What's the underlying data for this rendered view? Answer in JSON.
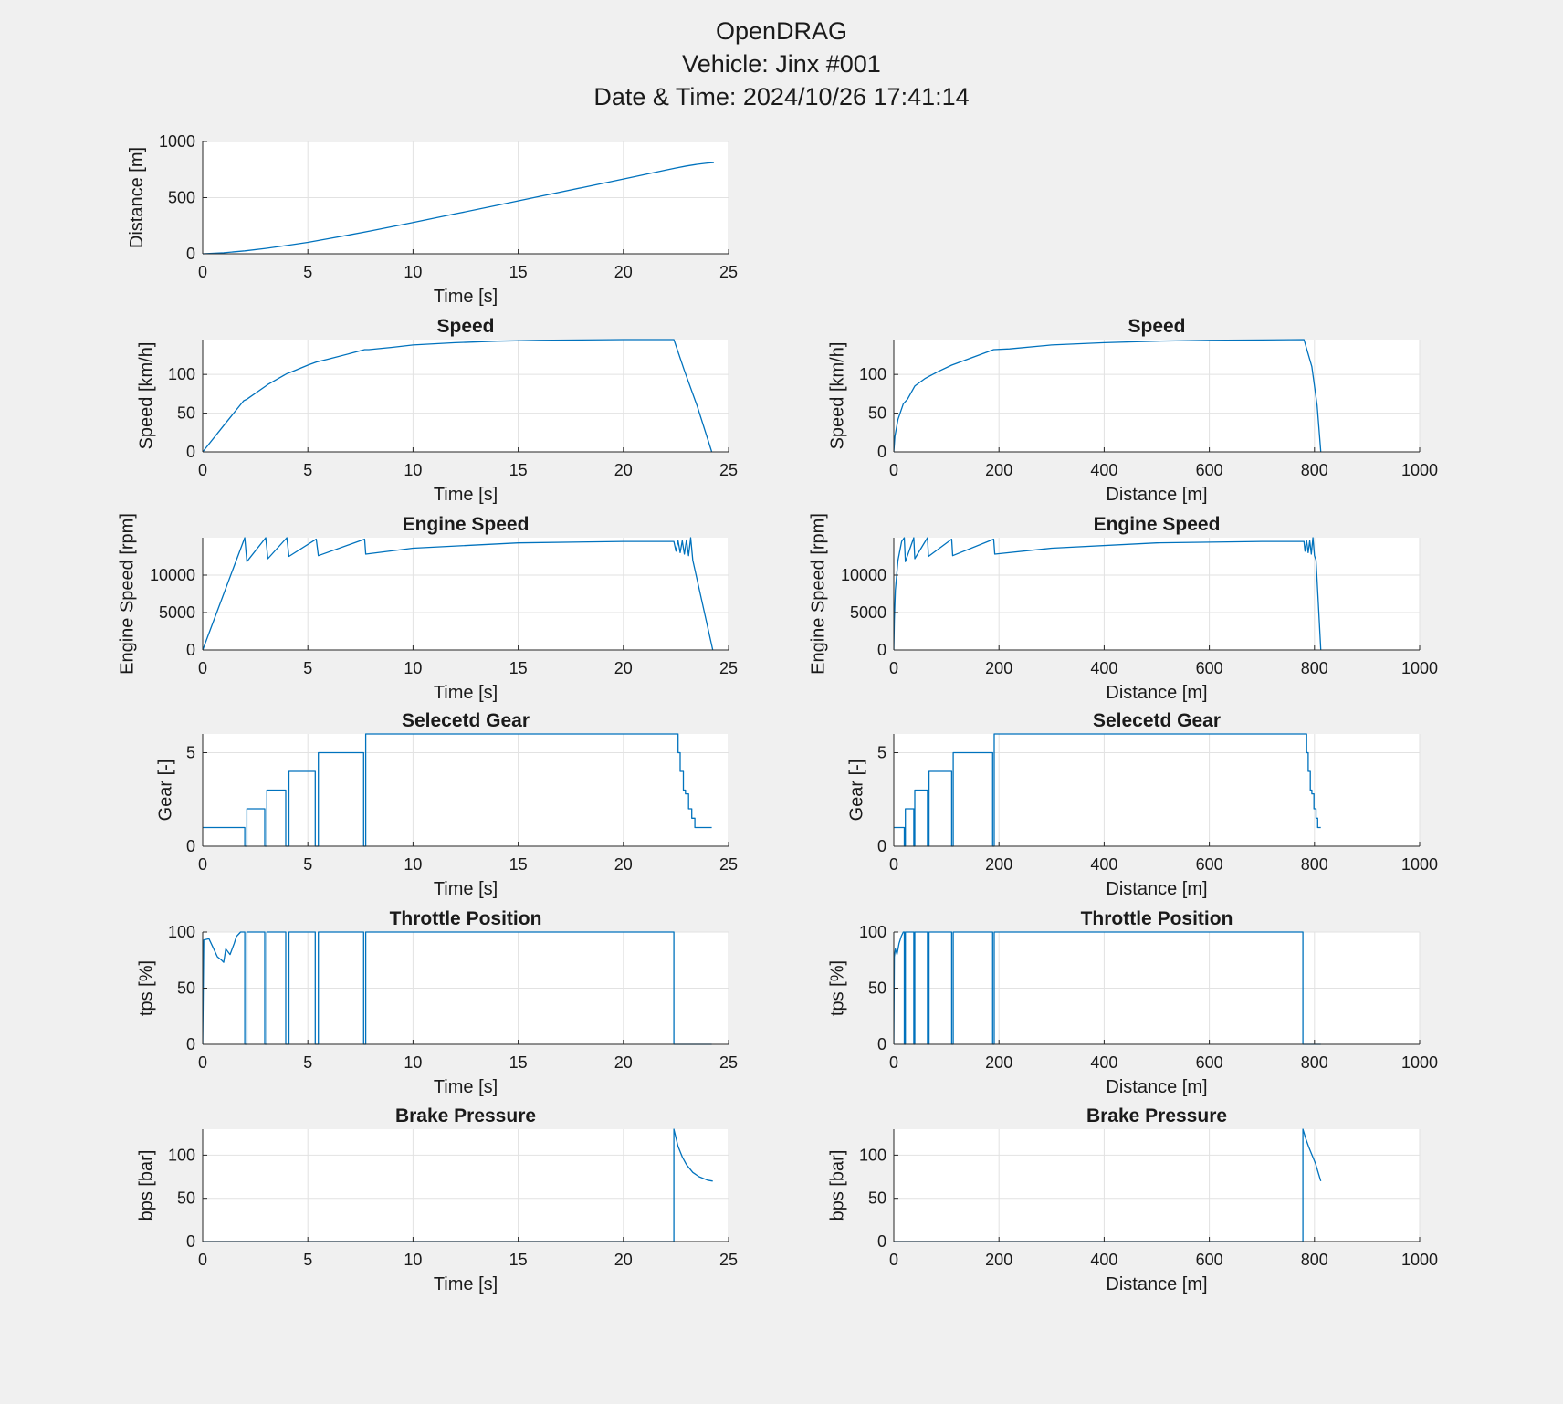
{
  "figure": {
    "title_lines": [
      "OpenDRAG",
      "Vehicle: Jinx #001",
      "Date & Time: 2024/10/26 17:41:14"
    ],
    "background": "#f0f0f0",
    "axes_background": "#ffffff",
    "line_color": "#0072bd",
    "grid_color": "#e2e2e2"
  },
  "chart_data": [
    {
      "id": "dist-time",
      "type": "line",
      "title": "",
      "xlabel": "Time [s]",
      "ylabel": "Distance [m]",
      "xlim": [
        0,
        25
      ],
      "ylim": [
        0,
        1000
      ],
      "xticks": [
        0,
        5,
        10,
        15,
        20,
        25
      ],
      "yticks": [
        0,
        500,
        1000
      ],
      "series": [
        {
          "name": "Distance",
          "x": [
            0,
            1,
            2,
            3,
            4,
            5,
            6,
            7,
            8,
            10,
            12,
            14,
            16,
            18,
            20,
            22,
            22.5,
            23,
            23.5,
            24,
            24.3
          ],
          "y": [
            0,
            9,
            26,
            48,
            74,
            102,
            135,
            169,
            204,
            279,
            355,
            432,
            510,
            588,
            666,
            745,
            764,
            782,
            797,
            808,
            812
          ]
        }
      ]
    },
    {
      "id": "speed-time",
      "type": "line",
      "title": "Speed",
      "xlabel": "Time [s]",
      "ylabel": "Speed [km/h]",
      "xlim": [
        0,
        25
      ],
      "ylim": [
        0,
        145
      ],
      "xticks": [
        0,
        5,
        10,
        15,
        20,
        25
      ],
      "yticks": [
        0,
        50,
        100
      ],
      "series": [
        {
          "name": "Speed",
          "x": [
            0,
            1,
            1.95,
            2.1,
            3,
            3.1,
            4,
            4.2,
            5,
            5.4,
            6,
            7,
            7.7,
            7.9,
            9,
            10,
            12,
            14,
            16,
            18,
            20,
            22.4,
            22.9,
            23.5,
            24.2
          ],
          "y": [
            0,
            34,
            66,
            68,
            85,
            87,
            101,
            103,
            112,
            116,
            120,
            127,
            132,
            132,
            135,
            138,
            141,
            143,
            144,
            144.5,
            145,
            145,
            105,
            60,
            0
          ]
        }
      ]
    },
    {
      "id": "speed-dist",
      "type": "line",
      "title": "Speed",
      "xlabel": "Distance [m]",
      "ylabel": "Speed [km/h]",
      "xlim": [
        0,
        1000
      ],
      "ylim": [
        0,
        145
      ],
      "xticks": [
        0,
        200,
        400,
        600,
        800,
        1000
      ],
      "yticks": [
        0,
        50,
        100
      ],
      "series": [
        {
          "name": "Speed",
          "x": [
            0,
            2,
            8,
            18,
            26,
            40,
            60,
            85,
            110,
            150,
            190,
            220,
            300,
            400,
            500,
            600,
            700,
            780,
            795,
            805,
            812
          ],
          "y": [
            0,
            20,
            42,
            62,
            68,
            85,
            95,
            104,
            112,
            122,
            132,
            133,
            138,
            141,
            143,
            144,
            144.5,
            145,
            110,
            60,
            0
          ]
        }
      ]
    },
    {
      "id": "rpm-time",
      "type": "line",
      "title": "Engine Speed",
      "xlabel": "Time [s]",
      "ylabel": "Engine Speed [rpm]",
      "xlim": [
        0,
        25
      ],
      "ylim": [
        0,
        15000
      ],
      "xticks": [
        0,
        5,
        10,
        15,
        20,
        25
      ],
      "yticks": [
        0,
        5000,
        10000
      ],
      "series": [
        {
          "name": "Engine Speed",
          "x": [
            0,
            2,
            2.1,
            3,
            3.1,
            4,
            4.1,
            5.4,
            5.5,
            7.7,
            7.75,
            10,
            15,
            20,
            22.4,
            22.5,
            22.6,
            22.7,
            22.8,
            22.9,
            23.0,
            23.1,
            23.2,
            23.3,
            24.25
          ],
          "y": [
            0,
            15000,
            11800,
            15000,
            12200,
            15000,
            12500,
            14800,
            12600,
            14800,
            12800,
            13600,
            14300,
            14500,
            14500,
            13200,
            14600,
            13000,
            14600,
            12800,
            14700,
            12600,
            15000,
            12000,
            0
          ]
        }
      ]
    },
    {
      "id": "rpm-dist",
      "type": "line",
      "title": "Engine Speed",
      "xlabel": "Distance [m]",
      "ylabel": "Engine Speed [rpm]",
      "xlim": [
        0,
        1000
      ],
      "ylim": [
        0,
        15000
      ],
      "xticks": [
        0,
        200,
        400,
        600,
        800,
        1000
      ],
      "yticks": [
        0,
        5000,
        10000
      ],
      "series": [
        {
          "name": "Engine Speed",
          "x": [
            0,
            1,
            3,
            8,
            15,
            20,
            22,
            38,
            40,
            64,
            66,
            110,
            112,
            190,
            192,
            300,
            500,
            700,
            780,
            782,
            785,
            788,
            791,
            794,
            797,
            800,
            803,
            812
          ],
          "y": [
            0,
            4000,
            8000,
            12000,
            14500,
            15000,
            11800,
            15000,
            12200,
            15000,
            12500,
            14800,
            12600,
            14800,
            12800,
            13600,
            14300,
            14500,
            14500,
            13200,
            14600,
            13000,
            14600,
            12800,
            15000,
            12600,
            12000,
            0
          ]
        }
      ]
    },
    {
      "id": "gear-time",
      "type": "line",
      "title": "Selecetd Gear",
      "xlabel": "Time [s]",
      "ylabel": "Gear [-]",
      "xlim": [
        0,
        25
      ],
      "ylim": [
        0,
        6
      ],
      "xticks": [
        0,
        5,
        10,
        15,
        20,
        25
      ],
      "yticks": [
        0,
        5
      ],
      "series": [
        {
          "name": "Gear",
          "x": [
            0,
            2,
            2,
            2.1,
            2.1,
            2.95,
            2.95,
            3.05,
            3.05,
            3.95,
            3.95,
            4.1,
            4.1,
            5.35,
            5.35,
            5.5,
            5.5,
            7.65,
            7.65,
            7.75,
            7.75,
            22.6,
            22.6,
            22.7,
            22.7,
            22.85,
            22.85,
            22.95,
            22.95,
            23.1,
            23.1,
            23.25,
            23.25,
            23.4,
            23.4,
            24.2
          ],
          "y": [
            1,
            1,
            0,
            0,
            2,
            2,
            0,
            0,
            3,
            3,
            0,
            0,
            4,
            4,
            0,
            0,
            5,
            5,
            0,
            0,
            6,
            6,
            5,
            5,
            4,
            4,
            3,
            3,
            2.8,
            2.8,
            2,
            2,
            1.5,
            1.5,
            1,
            1
          ]
        }
      ]
    },
    {
      "id": "gear-dist",
      "type": "line",
      "title": "Selecetd Gear",
      "xlabel": "Distance [m]",
      "ylabel": "Gear [-]",
      "xlim": [
        0,
        1000
      ],
      "ylim": [
        0,
        6
      ],
      "xticks": [
        0,
        200,
        400,
        600,
        800,
        1000
      ],
      "yticks": [
        0,
        5
      ],
      "series": [
        {
          "name": "Gear",
          "x": [
            0,
            20,
            20,
            22,
            22,
            38,
            38,
            40,
            40,
            64,
            64,
            67,
            67,
            110,
            110,
            113,
            113,
            188,
            188,
            191,
            191,
            785,
            785,
            788,
            788,
            792,
            792,
            795,
            795,
            799,
            799,
            803,
            803,
            806,
            806,
            812
          ],
          "y": [
            1,
            1,
            0,
            0,
            2,
            2,
            0,
            0,
            3,
            3,
            0,
            0,
            4,
            4,
            0,
            0,
            5,
            5,
            0,
            0,
            6,
            6,
            5,
            5,
            4,
            4,
            3,
            3,
            2.8,
            2.8,
            2,
            2,
            1.5,
            1.5,
            1,
            1
          ]
        }
      ]
    },
    {
      "id": "tps-time",
      "type": "line",
      "title": "Throttle Position",
      "xlabel": "Time [s]",
      "ylabel": "tps [%]",
      "xlim": [
        0,
        25
      ],
      "ylim": [
        0,
        100
      ],
      "xticks": [
        0,
        5,
        10,
        15,
        20,
        25
      ],
      "yticks": [
        0,
        50,
        100
      ],
      "series": [
        {
          "name": "tps",
          "x": [
            0,
            0.05,
            0.3,
            0.5,
            0.7,
            0.9,
            1.0,
            1.1,
            1.3,
            1.5,
            1.6,
            1.8,
            2.0,
            2.0,
            2.1,
            2.1,
            2.95,
            2.95,
            3.05,
            3.05,
            3.95,
            3.95,
            4.1,
            4.1,
            5.35,
            5.35,
            5.5,
            5.5,
            7.65,
            7.65,
            7.75,
            7.75,
            22.4,
            22.4,
            24.2
          ],
          "y": [
            0,
            93,
            94,
            86,
            78,
            75,
            73,
            85,
            80,
            90,
            96,
            100,
            100,
            0,
            0,
            100,
            100,
            0,
            0,
            100,
            100,
            0,
            0,
            100,
            100,
            0,
            0,
            100,
            100,
            0,
            0,
            100,
            100,
            0,
            0
          ]
        }
      ]
    },
    {
      "id": "tps-dist",
      "type": "line",
      "title": "Throttle Position",
      "xlabel": "Distance [m]",
      "ylabel": "tps [%]",
      "xlim": [
        0,
        1000
      ],
      "ylim": [
        0,
        100
      ],
      "xticks": [
        0,
        200,
        400,
        600,
        800,
        1000
      ],
      "yticks": [
        0,
        50,
        100
      ],
      "series": [
        {
          "name": "tps",
          "x": [
            0,
            1,
            3,
            6,
            10,
            14,
            18,
            20,
            20,
            22,
            22,
            38,
            38,
            40,
            40,
            64,
            64,
            67,
            67,
            110,
            110,
            113,
            113,
            188,
            188,
            191,
            191,
            778,
            778,
            812
          ],
          "y": [
            0,
            78,
            85,
            80,
            90,
            96,
            100,
            100,
            0,
            0,
            100,
            100,
            0,
            0,
            100,
            100,
            0,
            0,
            100,
            100,
            0,
            0,
            100,
            100,
            0,
            0,
            100,
            100,
            0,
            0
          ]
        }
      ]
    },
    {
      "id": "bps-time",
      "type": "line",
      "title": "Brake Pressure",
      "xlabel": "Time [s]",
      "ylabel": "bps [bar]",
      "xlim": [
        0,
        25
      ],
      "ylim": [
        0,
        130
      ],
      "xticks": [
        0,
        5,
        10,
        15,
        20,
        25
      ],
      "yticks": [
        0,
        50,
        100
      ],
      "series": [
        {
          "name": "bps",
          "x": [
            0,
            22.4,
            22.4,
            22.6,
            22.8,
            23.0,
            23.3,
            23.6,
            24.0,
            24.25
          ],
          "y": [
            0,
            0,
            130,
            110,
            98,
            89,
            80,
            75,
            71,
            70
          ]
        }
      ]
    },
    {
      "id": "bps-dist",
      "type": "line",
      "title": "Brake Pressure",
      "xlabel": "Distance [m]",
      "ylabel": "bps [bar]",
      "xlim": [
        0,
        1000
      ],
      "ylim": [
        0,
        130
      ],
      "xticks": [
        0,
        200,
        400,
        600,
        800,
        1000
      ],
      "yticks": [
        0,
        50,
        100
      ],
      "series": [
        {
          "name": "bps",
          "x": [
            0,
            778,
            778,
            784,
            790,
            796,
            802,
            807,
            812
          ],
          "y": [
            0,
            0,
            130,
            118,
            108,
            99,
            90,
            80,
            70
          ]
        }
      ]
    }
  ]
}
